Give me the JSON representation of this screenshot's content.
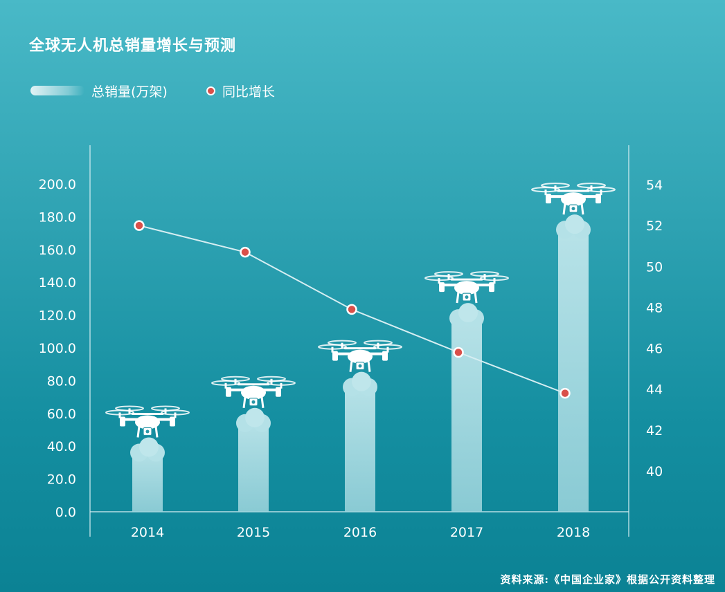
{
  "title": "全球无人机总销量增长与预测",
  "legend": {
    "bar_label": "总销量(万架)",
    "line_label": "同比增长"
  },
  "source": "资料来源:《中国企业家》根据公开资料整理",
  "colors": {
    "bar": "#a9dde4",
    "line": "#d6eef2",
    "point_fill": "#d9504a",
    "point_stroke": "#ffffff",
    "axis": "#d6eef2"
  },
  "chart_data": {
    "type": "bar",
    "categories": [
      "2014",
      "2015",
      "2016",
      "2017",
      "2018"
    ],
    "series": [
      {
        "name": "总销量(万架)",
        "type": "bar",
        "axis": "left",
        "values": [
          42,
          60,
          82,
          124,
          178
        ]
      },
      {
        "name": "同比增长",
        "type": "line",
        "axis": "right",
        "values": [
          52.0,
          50.7,
          47.9,
          45.8,
          43.8
        ]
      }
    ],
    "y_left": {
      "min": 0,
      "max": 200,
      "ticks": [
        "0.0",
        "20.0",
        "40.0",
        "60.0",
        "80.0",
        "100.0",
        "120.0",
        "140.0",
        "160.0",
        "180.0",
        "200.0"
      ]
    },
    "y_right": {
      "min": 38,
      "max": 54,
      "ticks": [
        "40",
        "42",
        "44",
        "46",
        "48",
        "50",
        "52",
        "54"
      ]
    },
    "icon": "drone-icon",
    "grid": false,
    "legend_position": "top-left"
  }
}
